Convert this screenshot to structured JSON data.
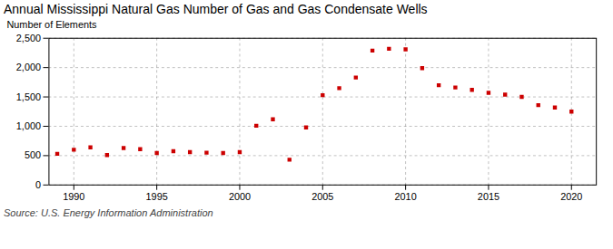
{
  "chart_data": {
    "type": "scatter",
    "title": "Annual Mississippi Natural Gas Number of Gas and Gas Condensate Wells",
    "ylabel": "Number of Elements",
    "caption": "Source: U.S. Energy Information Administration",
    "x": [
      1989,
      1990,
      1991,
      1992,
      1993,
      1994,
      1995,
      1996,
      1997,
      1998,
      1999,
      2000,
      2001,
      2002,
      2003,
      2004,
      2005,
      2006,
      2007,
      2008,
      2009,
      2010,
      2011,
      2012,
      2013,
      2014,
      2015,
      2016,
      2017,
      2018,
      2019,
      2020
    ],
    "values": [
      530,
      600,
      640,
      510,
      630,
      610,
      545,
      575,
      560,
      550,
      545,
      560,
      1010,
      1120,
      430,
      980,
      1530,
      1650,
      1830,
      2290,
      2320,
      2310,
      1990,
      1700,
      1660,
      1620,
      1570,
      1540,
      1500,
      1360,
      1320,
      1250
    ],
    "color": "#cc0000",
    "marker": "square",
    "xlim": [
      1988.5,
      2021.5
    ],
    "xticks": [
      1990,
      1995,
      2000,
      2005,
      2010,
      2015,
      2020
    ],
    "ylim": [
      0,
      2500
    ],
    "yticks": [
      0,
      500,
      {
        "value": 1000,
        "label": "1,000"
      },
      {
        "value": 1500,
        "label": "1,500"
      },
      {
        "value": 2000,
        "label": "2,000"
      },
      {
        "value": 2500,
        "label": "2,500"
      }
    ],
    "grid": true
  }
}
